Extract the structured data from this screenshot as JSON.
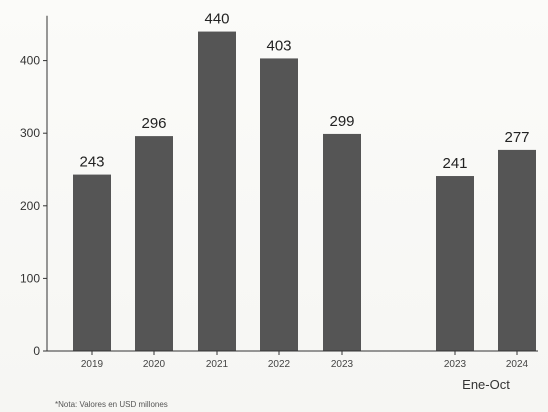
{
  "chart_data": {
    "type": "bar",
    "title": "",
    "xlabel": "",
    "ylabel": "",
    "categories": [
      "2019",
      "2020",
      "2021",
      "2022",
      "2023",
      "2023",
      "2024"
    ],
    "values": [
      243,
      296,
      440,
      403,
      299,
      241,
      277
    ],
    "value_labels": [
      "243",
      "296",
      "440",
      "403",
      "299",
      "241",
      "277"
    ],
    "ylim": [
      0,
      470
    ],
    "yticks": [
      0,
      100,
      200,
      300,
      400
    ],
    "ytick_labels": [
      "0",
      "100",
      "200",
      "300",
      "400"
    ],
    "grid": false,
    "legend": "none",
    "bar_color": "#555555",
    "group_label": "Ene-Oct",
    "group_label_under": [
      5,
      6
    ],
    "note": "*Nota: Valores en USD millones"
  }
}
